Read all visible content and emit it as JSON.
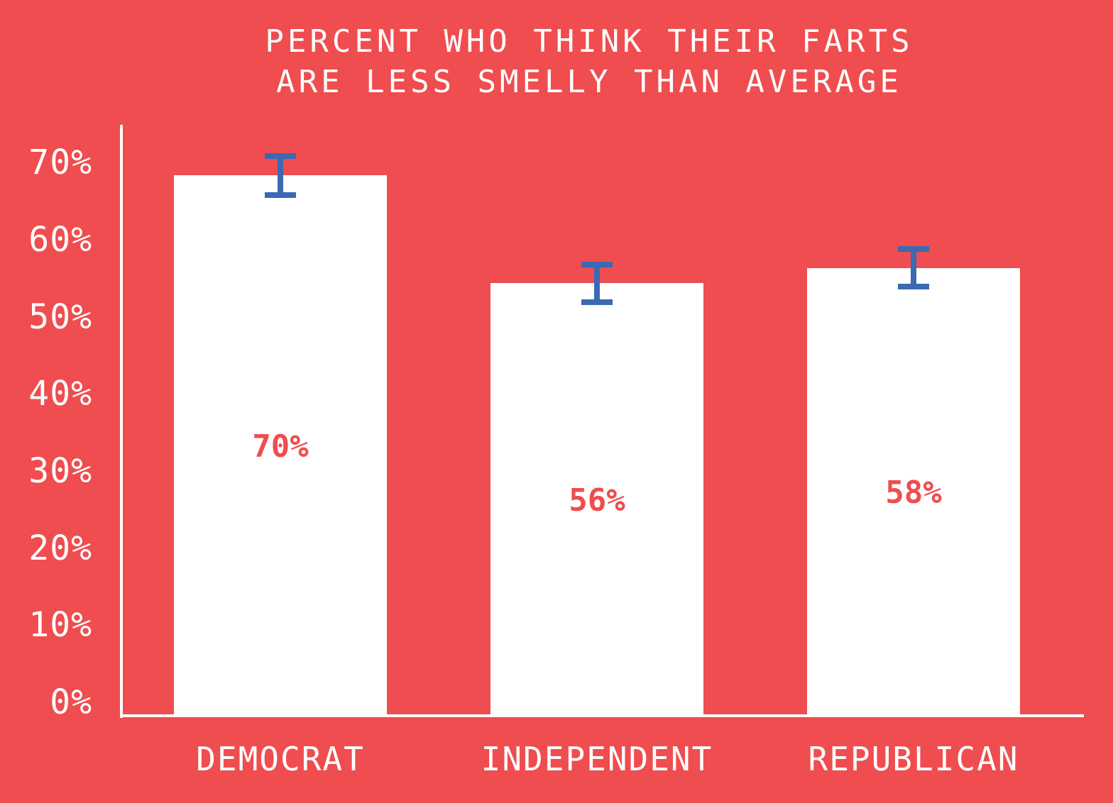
{
  "chart_data": {
    "type": "bar",
    "title": "PERCENT WHO THINK THEIR FARTS ARE LESS SMELLY THAN AVERAGE",
    "title_lines": [
      "PERCENT WHO THINK THEIR FARTS",
      "ARE LESS SMELLY THAN AVERAGE"
    ],
    "categories": [
      "DEMOCRAT",
      "INDEPENDENT",
      "REPUBLICAN"
    ],
    "values": [
      70,
      56,
      58
    ],
    "value_labels": [
      "70%",
      "56%",
      "58%"
    ],
    "error_bars": {
      "plus_minus": [
        2.9,
        2.8,
        2.8
      ]
    },
    "y_ticks": [
      "0%",
      "10%",
      "20%",
      "30%",
      "40%",
      "50%",
      "60%",
      "70%"
    ],
    "y_tick_values": [
      0,
      10,
      20,
      30,
      40,
      50,
      60,
      70
    ],
    "ylim": [
      0,
      76.5
    ],
    "xlabel": "",
    "ylabel": "",
    "grid": false,
    "legend": null,
    "colors": {
      "background": "#ef4d4f",
      "bar_fill": "#ffffff",
      "axis": "#ffffff",
      "title_text": "#ffffff",
      "tick_text": "#ffffff",
      "category_text": "#ffffff",
      "value_label_text": "#ef4d4f",
      "error_bar": "#3b69b3"
    }
  }
}
